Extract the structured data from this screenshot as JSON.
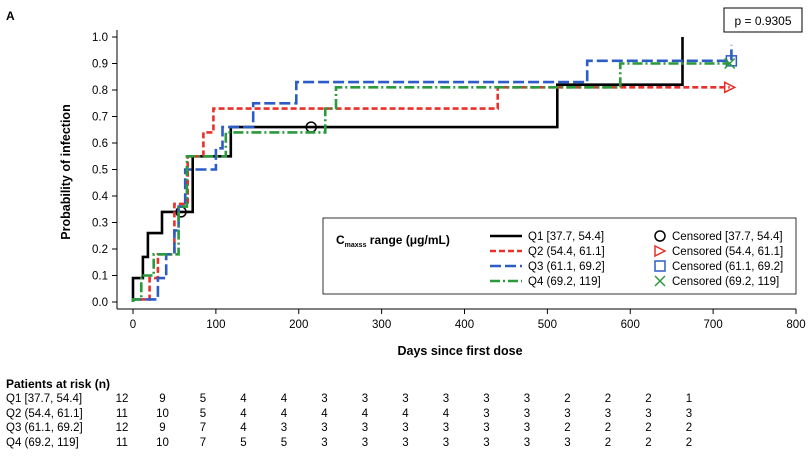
{
  "panel_label": "A",
  "chart_data": {
    "type": "line",
    "title": "",
    "xlabel": "Days since first dose",
    "ylabel": "Probability of infection",
    "xlim": [
      0,
      800
    ],
    "ylim": [
      0,
      1.0
    ],
    "x_ticks": [
      0,
      100,
      200,
      300,
      400,
      500,
      600,
      700,
      800
    ],
    "y_ticks": [
      0.0,
      0.1,
      0.2,
      0.3,
      0.4,
      0.5,
      0.6,
      0.7,
      0.8,
      0.9,
      1.0
    ],
    "x_tick_labels": [
      "0",
      "100",
      "200",
      "300",
      "400",
      "500",
      "600",
      "700",
      "800"
    ],
    "y_tick_labels": [
      "0.0",
      "0.1",
      "0.2",
      "0.3",
      "0.4",
      "0.5",
      "0.6",
      "0.7",
      "0.8",
      "0.9",
      "1.0"
    ],
    "p_value": "p = 0.9305",
    "legend_title_prefix": "C",
    "legend_title_sub": "maxss",
    "legend_title_suffix": " range (μg/mL)",
    "legend_position": "bottom-right",
    "grid": false,
    "series": [
      {
        "name": "Q1 [37.7, 54.4]",
        "censored_label": "Censored [37.7, 54.4]",
        "color": "#000000",
        "dash": "solid",
        "marker": "circle",
        "steps": [
          [
            0,
            0
          ],
          [
            0,
            0.09
          ],
          [
            12,
            0.09
          ],
          [
            12,
            0.17
          ],
          [
            18,
            0.17
          ],
          [
            18,
            0.26
          ],
          [
            35,
            0.26
          ],
          [
            35,
            0.34
          ],
          [
            62,
            0.34
          ],
          [
            62,
            0.34
          ],
          [
            72,
            0.34
          ],
          [
            72,
            0.55
          ],
          [
            118,
            0.55
          ],
          [
            118,
            0.66
          ],
          [
            512,
            0.66
          ],
          [
            512,
            0.82
          ],
          [
            663,
            0.82
          ],
          [
            663,
            1.0
          ]
        ],
        "censored": [
          [
            58,
            0.34
          ],
          [
            215,
            0.66
          ]
        ]
      },
      {
        "name": "Q2 (54.4, 61.1]",
        "censored_label": "Censored (54.4, 61.1]",
        "color": "#e8312a",
        "dash": "dashed",
        "marker": "triangle-right",
        "steps": [
          [
            0,
            0
          ],
          [
            0,
            0.01
          ],
          [
            20,
            0.01
          ],
          [
            20,
            0.09
          ],
          [
            30,
            0.09
          ],
          [
            30,
            0.18
          ],
          [
            50,
            0.18
          ],
          [
            50,
            0.37
          ],
          [
            66,
            0.37
          ],
          [
            66,
            0.55
          ],
          [
            85,
            0.55
          ],
          [
            85,
            0.64
          ],
          [
            97,
            0.64
          ],
          [
            97,
            0.73
          ],
          [
            440,
            0.73
          ],
          [
            440,
            0.81
          ],
          [
            720,
            0.81
          ]
        ],
        "censored": [
          [
            720,
            0.81
          ]
        ]
      },
      {
        "name": "Q3 (61.1, 69.2]",
        "censored_label": "Censored (61.1, 69.2]",
        "color": "#2e5cc7",
        "dash": "longdash",
        "marker": "square",
        "steps": [
          [
            0,
            0
          ],
          [
            0,
            0.01
          ],
          [
            30,
            0.01
          ],
          [
            30,
            0.09
          ],
          [
            40,
            0.09
          ],
          [
            40,
            0.18
          ],
          [
            50,
            0.18
          ],
          [
            50,
            0.27
          ],
          [
            55,
            0.27
          ],
          [
            55,
            0.36
          ],
          [
            63,
            0.36
          ],
          [
            63,
            0.5
          ],
          [
            100,
            0.5
          ],
          [
            100,
            0.58
          ],
          [
            108,
            0.58
          ],
          [
            108,
            0.66
          ],
          [
            145,
            0.66
          ],
          [
            145,
            0.75
          ],
          [
            197,
            0.75
          ],
          [
            197,
            0.83
          ],
          [
            548,
            0.83
          ],
          [
            548,
            0.91
          ],
          [
            722,
            0.91
          ],
          [
            722,
            0.97
          ]
        ],
        "censored": [
          [
            722,
            0.91
          ]
        ]
      },
      {
        "name": "Q4 (69.2, 119]",
        "censored_label": "Censored (69.2, 119]",
        "color": "#2a9a3c",
        "dash": "dashdot",
        "marker": "x",
        "steps": [
          [
            0,
            0
          ],
          [
            0,
            0.01
          ],
          [
            10,
            0.01
          ],
          [
            10,
            0.1
          ],
          [
            25,
            0.1
          ],
          [
            25,
            0.18
          ],
          [
            55,
            0.18
          ],
          [
            55,
            0.36
          ],
          [
            65,
            0.36
          ],
          [
            65,
            0.55
          ],
          [
            112,
            0.55
          ],
          [
            112,
            0.64
          ],
          [
            232,
            0.64
          ],
          [
            232,
            0.73
          ],
          [
            245,
            0.73
          ],
          [
            245,
            0.81
          ],
          [
            588,
            0.81
          ],
          [
            588,
            0.9
          ],
          [
            720,
            0.9
          ]
        ],
        "censored": [
          [
            720,
            0.9
          ]
        ]
      }
    ]
  },
  "risk_table": {
    "title": "Patients at risk (n)",
    "rows": [
      {
        "label": "Q1 [37.7, 54.4]",
        "values": [
          "12",
          "9",
          "5",
          "4",
          "4",
          "3",
          "3",
          "3",
          "3",
          "3",
          "3",
          "2",
          "2",
          "2",
          "1"
        ]
      },
      {
        "label": "Q2 (54.4, 61.1]",
        "values": [
          "11",
          "10",
          "5",
          "4",
          "4",
          "4",
          "4",
          "4",
          "4",
          "3",
          "3",
          "3",
          "3",
          "3",
          "3"
        ]
      },
      {
        "label": "Q3 (61.1, 69.2]",
        "values": [
          "12",
          "9",
          "7",
          "4",
          "3",
          "3",
          "3",
          "3",
          "3",
          "3",
          "3",
          "2",
          "2",
          "2",
          "2"
        ]
      },
      {
        "label": "Q4 (69.2, 119]",
        "values": [
          "11",
          "10",
          "7",
          "5",
          "5",
          "3",
          "3",
          "3",
          "3",
          "3",
          "3",
          "3",
          "2",
          "2",
          "2"
        ]
      }
    ]
  }
}
